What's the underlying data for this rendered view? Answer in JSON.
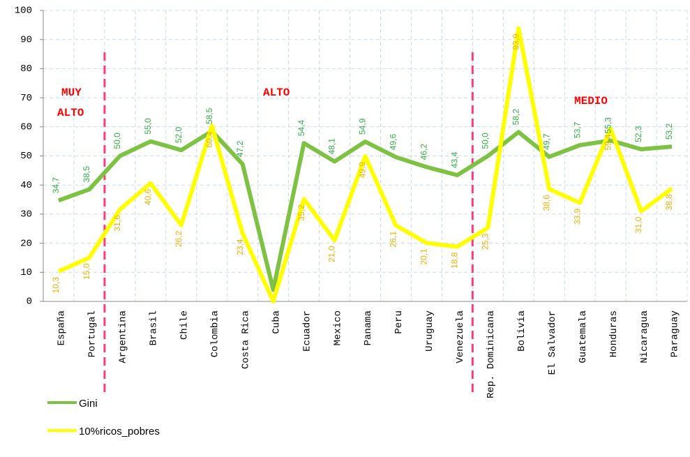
{
  "chart_data": {
    "type": "line",
    "categories": [
      "España",
      "Portugal",
      "Argentina",
      "Brasil",
      "Chile",
      "Colombia",
      "Costa Rica",
      "Cuba",
      "Ecuador",
      "Mexico",
      "Panama",
      "Peru",
      "Uruguay",
      "Venezuela",
      "Rep. Dominicana",
      "Bolivia",
      "El Salvador",
      "Guatemala",
      "Honduras",
      "Nicaragua",
      "Paraguay"
    ],
    "series": [
      {
        "name": "Gini",
        "color": "#7dc242",
        "label_color": "#2fb040",
        "values": [
          34.7,
          38.5,
          50.0,
          55.0,
          52.0,
          58.5,
          47.2,
          4,
          54.4,
          48.1,
          54.9,
          49.6,
          46.2,
          43.4,
          50.0,
          58.2,
          49.7,
          53.7,
          55.3,
          52.3,
          53.2
        ],
        "value_labels": [
          "34,7",
          "38,5",
          "50,0",
          "55,0",
          "52,0",
          "58,5",
          "47,2",
          null,
          "54,4",
          "48,1",
          "54,9",
          "49,6",
          "46,2",
          "43,4",
          "50,0",
          "58,2",
          "49,7",
          "53,7",
          "55,3",
          "52,3",
          "53,2"
        ]
      },
      {
        "name": "10%ricos_pobres",
        "color": "#ffff00",
        "label_color": "#f0b000",
        "values": [
          10.3,
          15.0,
          31.6,
          40.6,
          26.2,
          60.4,
          23.4,
          0,
          35.2,
          21.0,
          49.9,
          26.1,
          20.1,
          18.8,
          25.3,
          93.9,
          38.6,
          33.9,
          59.4,
          31.0,
          38.8
        ],
        "value_labels": [
          "10,3",
          "15,0",
          "31,6",
          "40,6",
          "26,2",
          "60,4",
          "23,4",
          null,
          "35,2",
          "21,0",
          "49,9",
          "26,1",
          "20,1",
          "18,8",
          "25,3",
          "93,9",
          "38,6",
          "33,9",
          "59,4",
          "31,0",
          "38,8"
        ]
      }
    ],
    "annotations": [
      "MUY",
      "ALTO",
      "ALTO",
      "MEDIO"
    ],
    "ylim": [
      0,
      100
    ],
    "yticks": [
      0,
      10,
      20,
      30,
      40,
      50,
      60,
      70,
      80,
      90,
      100
    ],
    "grid": true
  }
}
